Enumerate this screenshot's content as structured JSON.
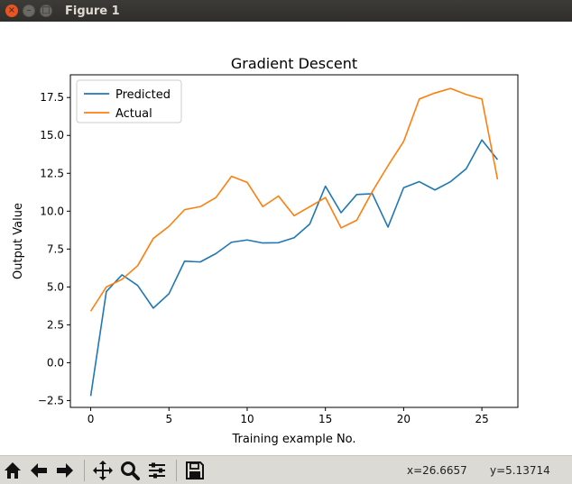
{
  "window": {
    "title": "Figure 1",
    "close_glyph": "×",
    "min_glyph": "–",
    "max_glyph": "□"
  },
  "toolbar": {
    "tools": [
      "home-icon",
      "back-icon",
      "forward-icon",
      "pan-icon",
      "zoom-icon",
      "subplots-icon",
      "save-icon"
    ],
    "coords_x": "x=26.6657",
    "coords_y": "y=5.13714"
  },
  "colors": {
    "predicted": "#1f77b4",
    "actual": "#ff7f0e"
  },
  "chart_data": {
    "type": "line",
    "title": "Gradient Descent",
    "xlabel": "Training example No.",
    "ylabel": "Output Value",
    "x": [
      0,
      1,
      2,
      3,
      4,
      5,
      6,
      7,
      8,
      9,
      10,
      11,
      12,
      13,
      14,
      15,
      16,
      17,
      18,
      19,
      20,
      21,
      22,
      23,
      24,
      25,
      26
    ],
    "xlim": [
      -1.3,
      27.3
    ],
    "ylim": [
      -2.95,
      19.0
    ],
    "xticks": [
      0,
      5,
      10,
      15,
      20,
      25
    ],
    "xtick_labels": [
      "0",
      "5",
      "10",
      "15",
      "20",
      "25"
    ],
    "yticks": [
      -2.5,
      0.0,
      2.5,
      5.0,
      7.5,
      10.0,
      12.5,
      15.0,
      17.5
    ],
    "ytick_labels": [
      "−2.5",
      "0.0",
      "2.5",
      "5.0",
      "7.5",
      "10.0",
      "12.5",
      "15.0",
      "17.5"
    ],
    "legend_position": "top-left",
    "grid": false,
    "series": [
      {
        "name": "Predicted",
        "values": [
          -2.2,
          4.7,
          5.8,
          5.1,
          3.6,
          4.55,
          6.7,
          6.65,
          7.2,
          7.95,
          8.1,
          7.9,
          7.92,
          8.25,
          9.15,
          11.65,
          9.9,
          11.1,
          11.15,
          8.95,
          11.55,
          11.95,
          11.4,
          11.95,
          12.8,
          14.7,
          13.4
        ]
      },
      {
        "name": "Actual",
        "values": [
          3.4,
          5.0,
          5.5,
          6.4,
          8.2,
          9.0,
          10.1,
          10.3,
          10.9,
          12.3,
          11.9,
          10.3,
          11.0,
          9.7,
          10.3,
          10.9,
          8.9,
          9.4,
          11.3,
          13.0,
          14.6,
          17.4,
          17.8,
          18.1,
          17.7,
          17.4,
          12.1
        ]
      }
    ]
  }
}
